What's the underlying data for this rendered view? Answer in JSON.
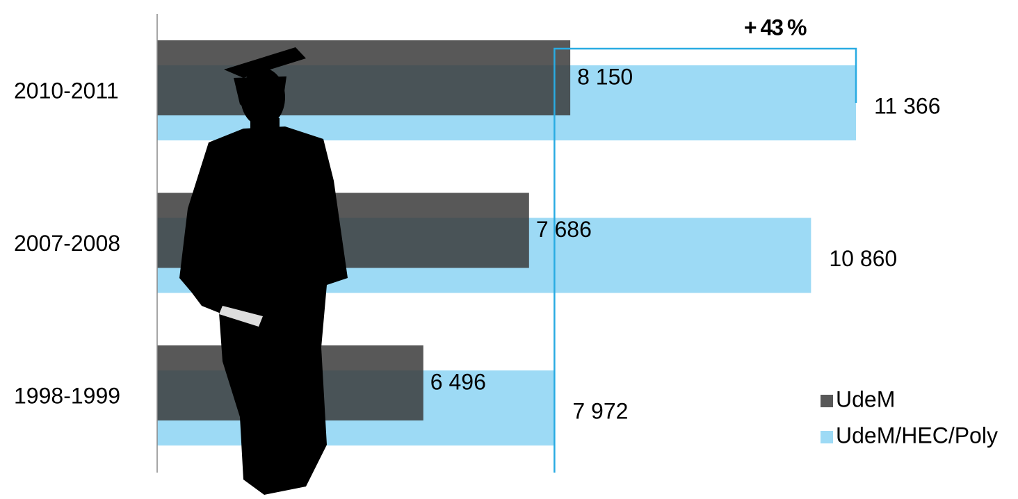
{
  "chart_data": {
    "type": "bar",
    "orientation": "horizontal",
    "annotation": "+ 43 %",
    "annotation_color": "#29abe2",
    "categories": [
      "2010-2011",
      "2007-2008",
      "1998-1999"
    ],
    "series": [
      {
        "name": "UdeM",
        "color": "#3b3b3b",
        "values": [
          8150,
          7686,
          6496
        ],
        "value_labels": [
          "8 150",
          "7 686",
          "6 496"
        ]
      },
      {
        "name": "UdeM/HEC/Poly",
        "color": "#9ddaf5",
        "values": [
          11366,
          10860,
          7972
        ],
        "value_labels": [
          "11 366",
          "10 860",
          "7 972"
        ]
      }
    ],
    "xlim": [
      3500,
      12000
    ],
    "legend": "bottom-right"
  }
}
